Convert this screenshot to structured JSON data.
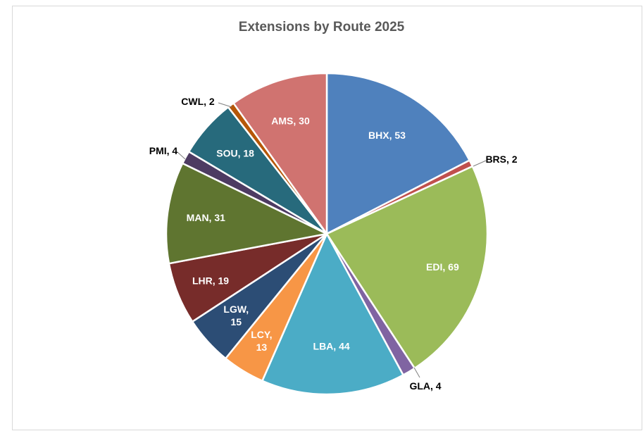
{
  "chart_data": {
    "type": "pie",
    "title": "Extensions by Route 2025",
    "categories": [
      "BHX",
      "BRS",
      "EDI",
      "GLA",
      "LBA",
      "LCY",
      "LGW",
      "LHR",
      "MAN",
      "PMI",
      "SOU",
      "CWL",
      "AMS"
    ],
    "values": [
      53,
      2,
      69,
      4,
      44,
      13,
      15,
      19,
      31,
      4,
      18,
      2,
      30
    ],
    "data_labels": [
      "BHX, 53",
      "BRS, 2",
      "EDI, 69",
      "GLA, 4",
      "LBA, 44",
      "LCY, 13",
      "LGW, 15",
      "LHR, 19",
      "MAN, 31",
      "PMI, 4",
      "SOU, 18",
      "CWL, 2",
      "AMS, 30"
    ],
    "colors": [
      "#4f81bd",
      "#c0504d",
      "#9bbb59",
      "#8064a2",
      "#4bacc6",
      "#f79646",
      "#2c4d75",
      "#772c2a",
      "#5f7530",
      "#4d3b62",
      "#276a7c",
      "#b65708",
      "#d07370"
    ],
    "start_angle": "12 o'clock",
    "direction": "clockwise",
    "legend": "none"
  }
}
